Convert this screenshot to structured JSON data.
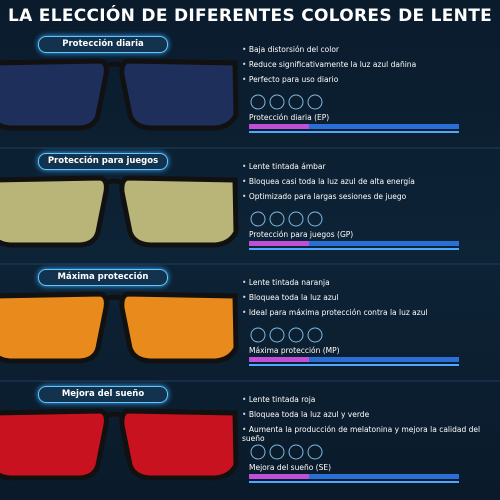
{
  "title": "LA ELECCIÓN DE DIFERENTES COLORES DE LENTE",
  "sections": [
    {
      "label": "Protección diaria",
      "bullets": [
        "Baja distorsión del color",
        "Reduce significativamente la luz azul dañina",
        "Perfecto para uso diario"
      ],
      "bar_label": "Protección diaria (EP)"
    },
    {
      "label": "Protección para juegos",
      "bullets": [
        "Lente tintada ámbar",
        "Bloquea casi toda la luz azul de alta energía",
        "Optimizado para largas sesiones de juego"
      ],
      "bar_label": "Protección para juegos (GP)"
    },
    {
      "label": "Máxima protección",
      "bullets": [
        "Lente tintada naranja",
        "Bloquea toda la luz azul",
        "Ideal para máxima protección contra la luz azul"
      ],
      "bar_label": "Máxima protección (MP)"
    },
    {
      "label": "Mejora del sueño",
      "bullets": [
        "Lente tintada roja",
        "Bloquea toda la luz azul y verde",
        "Aumenta la producción de melatonina y mejora la calidad del sueño"
      ],
      "bar_label": "Mejora del sueño (SE)"
    }
  ]
}
